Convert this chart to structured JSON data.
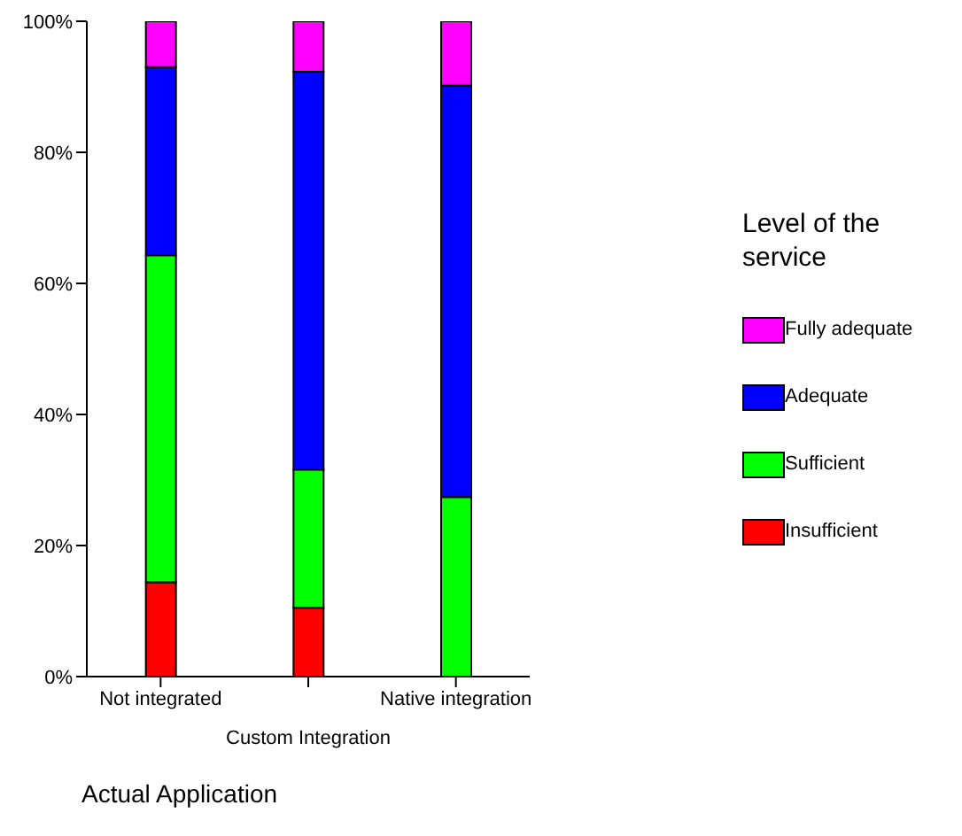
{
  "chart_data": {
    "type": "bar",
    "stacked": true,
    "xlabel": "Custom Integration",
    "legend_title": "Level of the service",
    "legend": "right",
    "grid": false,
    "categories": [
      "Not integrated",
      null,
      "Native integration"
    ],
    "series": [
      {
        "name": "Insufficient",
        "color": "#ff0000",
        "values": [
          14.4,
          10.5,
          0
        ]
      },
      {
        "name": "Sufficient",
        "color": "#00ff00",
        "values": [
          49.9,
          21.1,
          27.4
        ]
      },
      {
        "name": "Adequate",
        "color": "#0000ff",
        "values": [
          28.7,
          60.7,
          62.8
        ]
      },
      {
        "name": "Fully adequate",
        "color": "#ff00ff",
        "values": [
          7.0,
          7.7,
          9.8
        ]
      }
    ],
    "ylim": [
      0,
      100
    ],
    "yticks": [
      {
        "value": 0,
        "label": "0%"
      },
      {
        "value": 20,
        "label": "20%"
      },
      {
        "value": 40,
        "label": "40%"
      },
      {
        "value": 60,
        "label": "60%"
      },
      {
        "value": 80,
        "label": "80%"
      },
      {
        "value": 100,
        "label": "100%"
      }
    ],
    "annotations": [
      "Actual Application"
    ]
  }
}
